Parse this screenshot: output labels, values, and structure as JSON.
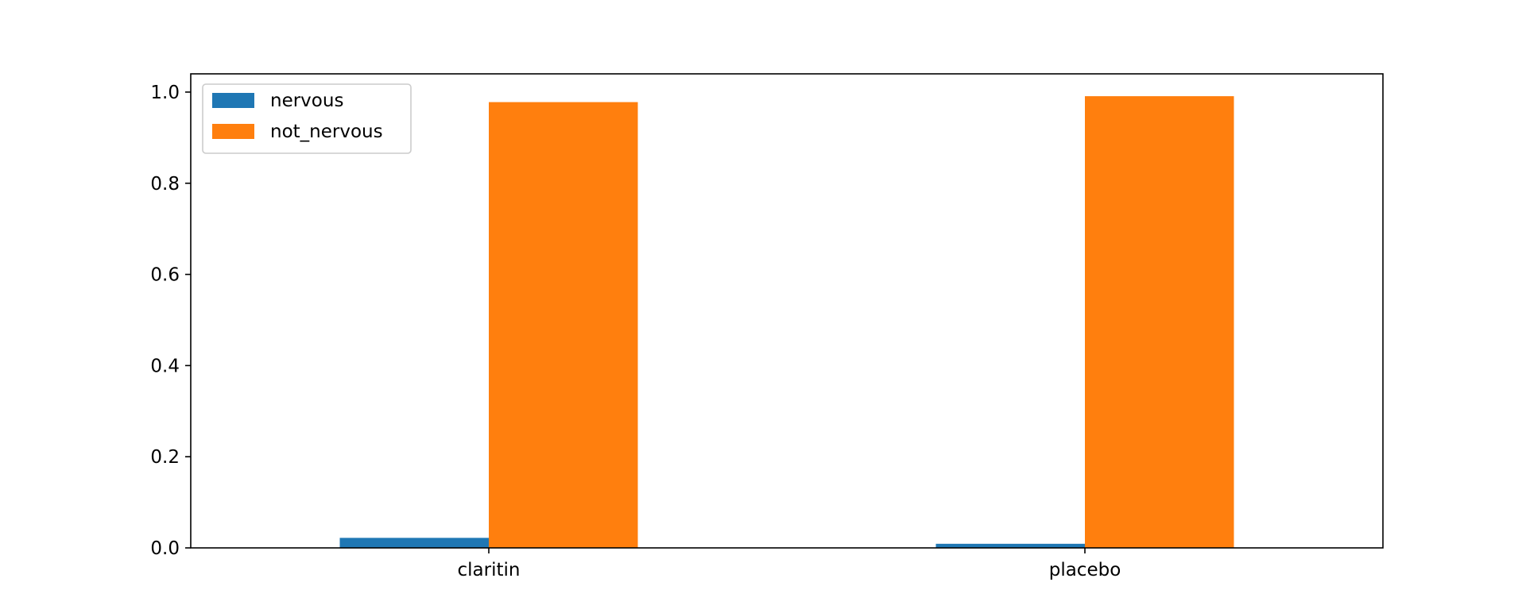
{
  "chart_data": {
    "type": "bar",
    "title": "",
    "xlabel": "",
    "ylabel": "",
    "categories": [
      "claritin",
      "placebo"
    ],
    "series": [
      {
        "name": "nervous",
        "values": [
          0.022,
          0.009
        ],
        "color": "#1f77b4"
      },
      {
        "name": "not_nervous",
        "values": [
          0.978,
          0.991
        ],
        "color": "#ff7f0e"
      }
    ],
    "ylim": [
      0,
      1.04
    ],
    "yticks": [
      0.0,
      0.2,
      0.4,
      0.6,
      0.8,
      1.0
    ],
    "ytick_labels": [
      "0.0",
      "0.2",
      "0.4",
      "0.6",
      "0.8",
      "1.0"
    ],
    "grid": false,
    "legend_position": "top-left"
  }
}
